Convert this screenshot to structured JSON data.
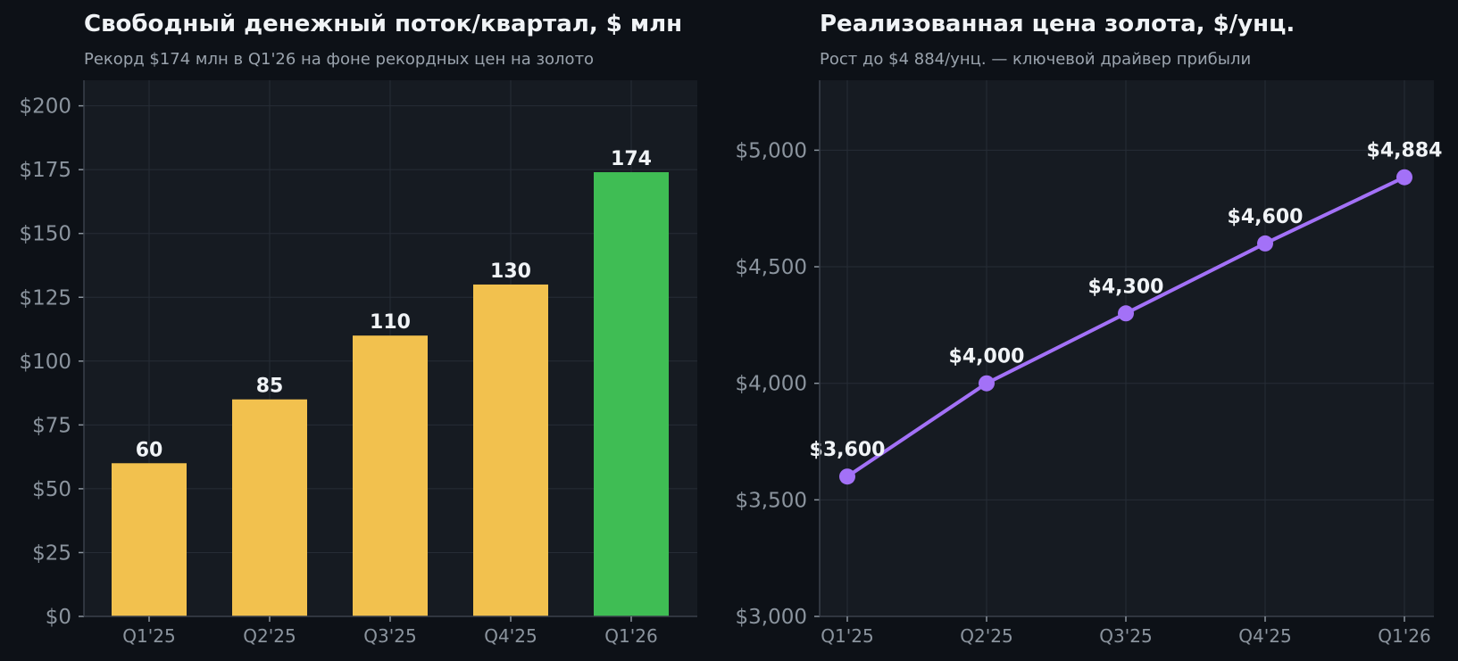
{
  "colors": {
    "background": "#0d1117",
    "plot_bg": "#161b22",
    "bar_default": "#f2c14e",
    "bar_highlight": "#3fbd54",
    "line": "#a371f7"
  },
  "chart_data": [
    {
      "type": "bar",
      "title": "Свободный денежный поток/квартал, $ млн",
      "subtitle": "Рекорд $174 млн в Q1'26 на фоне рекордных цен на золото",
      "categories": [
        "Q1'25",
        "Q2'25",
        "Q3'25",
        "Q4'25",
        "Q1'26"
      ],
      "values": [
        60,
        85,
        110,
        130,
        174
      ],
      "data_labels": [
        "60",
        "85",
        "110",
        "130",
        "174"
      ],
      "highlight_index": 4,
      "ylim": [
        0,
        210
      ],
      "yticks": [
        0,
        25,
        50,
        75,
        100,
        125,
        150,
        175,
        200
      ],
      "ytick_labels": [
        "$0",
        "$25",
        "$50",
        "$75",
        "$100",
        "$125",
        "$150",
        "$175",
        "$200"
      ],
      "grid": true
    },
    {
      "type": "line",
      "title": "Реализованная цена золота, $/унц.",
      "subtitle": "Рост до $4 884/унц. — ключевой драйвер прибыли",
      "categories": [
        "Q1'25",
        "Q2'25",
        "Q3'25",
        "Q4'25",
        "Q1'26"
      ],
      "values": [
        3600,
        4000,
        4300,
        4600,
        4884
      ],
      "data_labels": [
        "$3,600",
        "$4,000",
        "$4,300",
        "$4,600",
        "$4,884"
      ],
      "ylim": [
        3000,
        5300
      ],
      "yticks": [
        3000,
        3500,
        4000,
        4500,
        5000
      ],
      "ytick_labels": [
        "$3,000",
        "$3,500",
        "$4,000",
        "$4,500",
        "$5,000"
      ],
      "grid": true
    }
  ]
}
